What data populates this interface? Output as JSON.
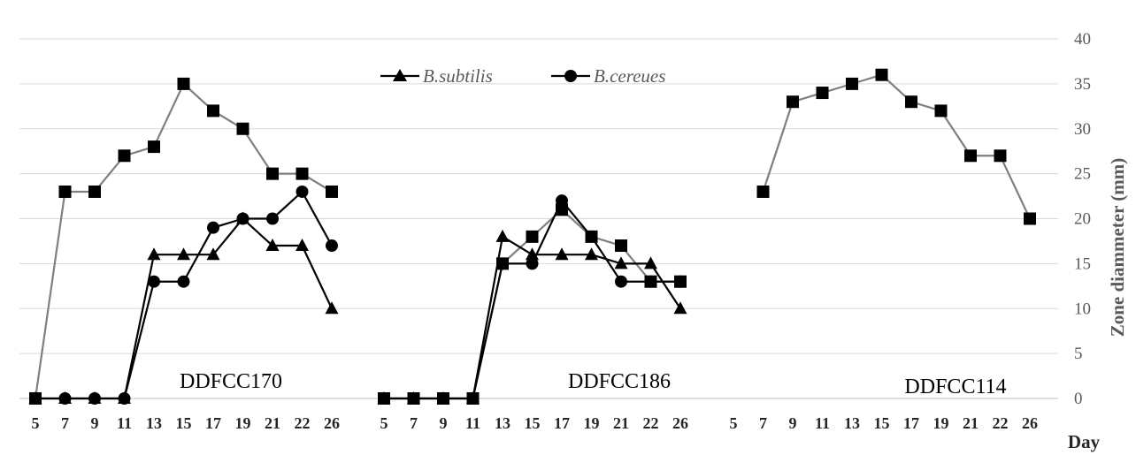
{
  "chart_data": {
    "type": "line",
    "xlabel": "Day",
    "ylabel": "Zone diammeter (mm)",
    "ylim": [
      0,
      40
    ],
    "yticks": [
      "0",
      "5",
      "10",
      "15",
      "20",
      "25",
      "30",
      "35",
      "40"
    ],
    "grid": true,
    "y_axis_side": "right",
    "legend_position": "top-center",
    "legend": [
      "B.subtilis",
      "B.cereues"
    ],
    "colors": {
      "B.subtilis": "#000000",
      "B.cereues": "#000000",
      "unlabeled_square_series": "#7f7f7f",
      "grid": "#d9d9d9",
      "axis": "#d9d9d9"
    },
    "groups": [
      {
        "label": "DDFCC170",
        "categories": [
          "5",
          "7",
          "9",
          "11",
          "13",
          "15",
          "17",
          "19",
          "21",
          "22",
          "26"
        ],
        "series": [
          {
            "name": "B.subtilis",
            "marker": "triangle",
            "values": [
              0,
              0,
              0,
              0,
              16,
              16,
              16,
              20,
              17,
              17,
              10
            ]
          },
          {
            "name": "B.cereues",
            "marker": "circle",
            "values": [
              0,
              0,
              0,
              0,
              13,
              13,
              19,
              20,
              20,
              23,
              17
            ]
          },
          {
            "marker": "square",
            "values": [
              0,
              23,
              23,
              27,
              28,
              35,
              32,
              30,
              25,
              25,
              23
            ]
          }
        ]
      },
      {
        "label": "DDFCC186",
        "categories": [
          "5",
          "7",
          "9",
          "11",
          "13",
          "15",
          "17",
          "19",
          "21",
          "22",
          "26"
        ],
        "series": [
          {
            "name": "B.subtilis",
            "marker": "triangle",
            "values": [
              0,
              0,
              0,
              0,
              18,
              16,
              16,
              16,
              15,
              15,
              10
            ]
          },
          {
            "name": "B.cereues",
            "marker": "circle",
            "values": [
              0,
              0,
              0,
              0,
              15,
              15,
              22,
              18,
              13,
              13,
              13
            ]
          },
          {
            "marker": "square",
            "values": [
              0,
              0,
              0,
              0,
              15,
              18,
              21,
              18,
              17,
              13,
              13
            ]
          }
        ]
      },
      {
        "label": "DDFCC114",
        "categories": [
          "5",
          "7",
          "9",
          "11",
          "13",
          "15",
          "17",
          "19",
          "21",
          "22",
          "26"
        ],
        "series": [
          {
            "marker": "square",
            "values": [
              null,
              23,
              33,
              34,
              35,
              36,
              33,
              32,
              27,
              27,
              20
            ]
          }
        ]
      }
    ]
  }
}
